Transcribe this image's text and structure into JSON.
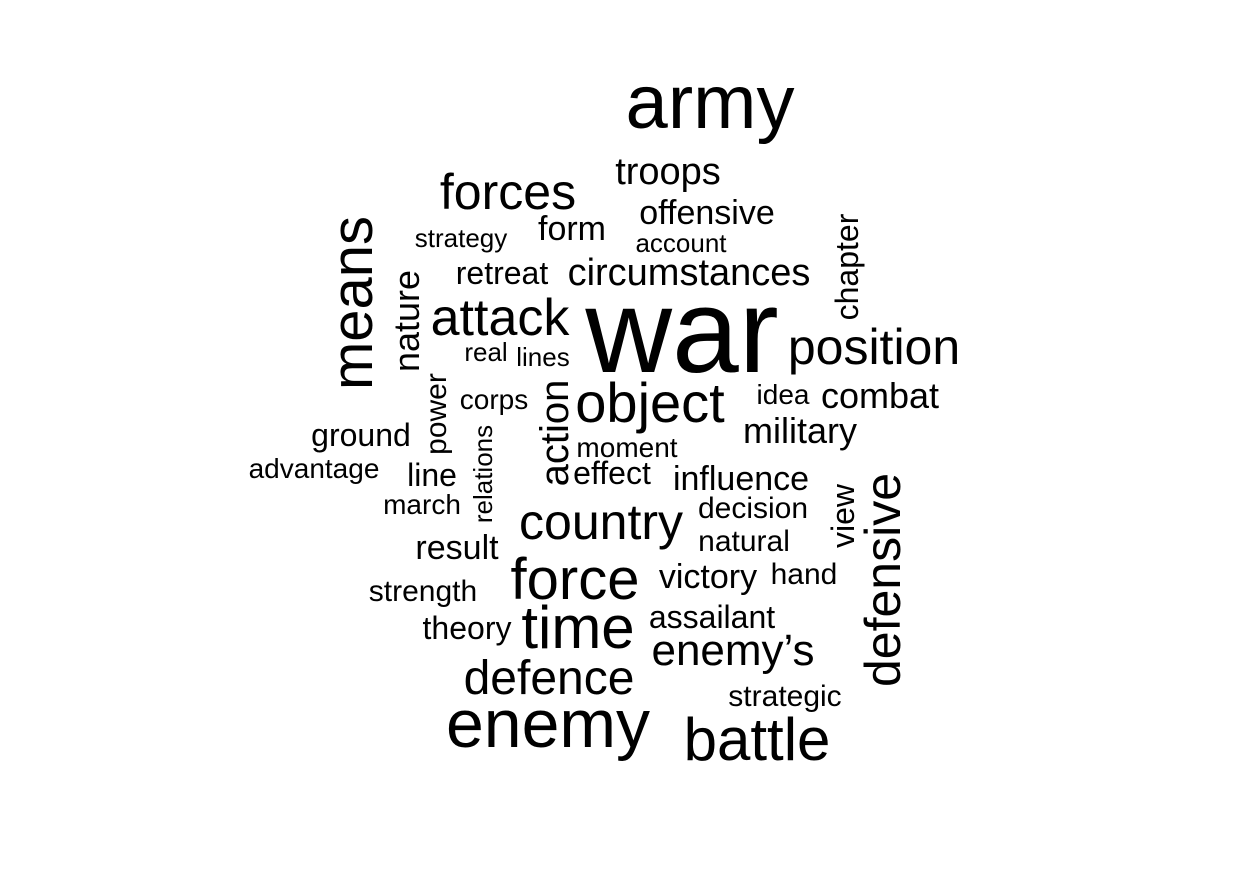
{
  "words": [
    {
      "text": "army",
      "color": "#000000"
    },
    {
      "text": "troops",
      "color": "#000000"
    },
    {
      "text": "forces",
      "color": "#000000"
    },
    {
      "text": "offensive",
      "color": "#000000"
    },
    {
      "text": "form",
      "color": "#000000"
    },
    {
      "text": "strategy",
      "color": "#000000"
    },
    {
      "text": "account",
      "color": "#000000"
    },
    {
      "text": "chapter",
      "color": "#000000"
    },
    {
      "text": "means",
      "color": "#000000"
    },
    {
      "text": "retreat",
      "color": "#000000"
    },
    {
      "text": "circumstances",
      "color": "#000000"
    },
    {
      "text": "nature",
      "color": "#000000"
    },
    {
      "text": "attack",
      "color": "#000000"
    },
    {
      "text": "war",
      "color": "#000000"
    },
    {
      "text": "position",
      "color": "#000000"
    },
    {
      "text": "real",
      "color": "#000000"
    },
    {
      "text": "lines",
      "color": "#000000"
    },
    {
      "text": "power",
      "color": "#000000"
    },
    {
      "text": "corps",
      "color": "#000000"
    },
    {
      "text": "action",
      "color": "#000000"
    },
    {
      "text": "object",
      "color": "#000000"
    },
    {
      "text": "idea",
      "color": "#000000"
    },
    {
      "text": "combat",
      "color": "#000000"
    },
    {
      "text": "ground",
      "color": "#000000"
    },
    {
      "text": "relations",
      "color": "#000000"
    },
    {
      "text": "military",
      "color": "#000000"
    },
    {
      "text": "moment",
      "color": "#000000"
    },
    {
      "text": "advantage",
      "color": "#000000"
    },
    {
      "text": "line",
      "color": "#000000"
    },
    {
      "text": "effect",
      "color": "#000000"
    },
    {
      "text": "influence",
      "color": "#000000"
    },
    {
      "text": "defensive",
      "color": "#000000"
    },
    {
      "text": "march",
      "color": "#000000"
    },
    {
      "text": "decision",
      "color": "#000000"
    },
    {
      "text": "view",
      "color": "#000000"
    },
    {
      "text": "country",
      "color": "#000000"
    },
    {
      "text": "result",
      "color": "#000000"
    },
    {
      "text": "natural",
      "color": "#000000"
    },
    {
      "text": "force",
      "color": "#000000"
    },
    {
      "text": "victory",
      "color": "#000000"
    },
    {
      "text": "hand",
      "color": "#000000"
    },
    {
      "text": "strength",
      "color": "#000000"
    },
    {
      "text": "assailant",
      "color": "#000000"
    },
    {
      "text": "theory",
      "color": "#000000"
    },
    {
      "text": "time",
      "color": "#000000"
    },
    {
      "text": "enemy’s",
      "color": "#000000"
    },
    {
      "text": "defence",
      "color": "#000000"
    },
    {
      "text": "strategic",
      "color": "#000000"
    },
    {
      "text": "enemy",
      "color": "#000000"
    },
    {
      "text": "battle",
      "color": "#000000"
    }
  ]
}
